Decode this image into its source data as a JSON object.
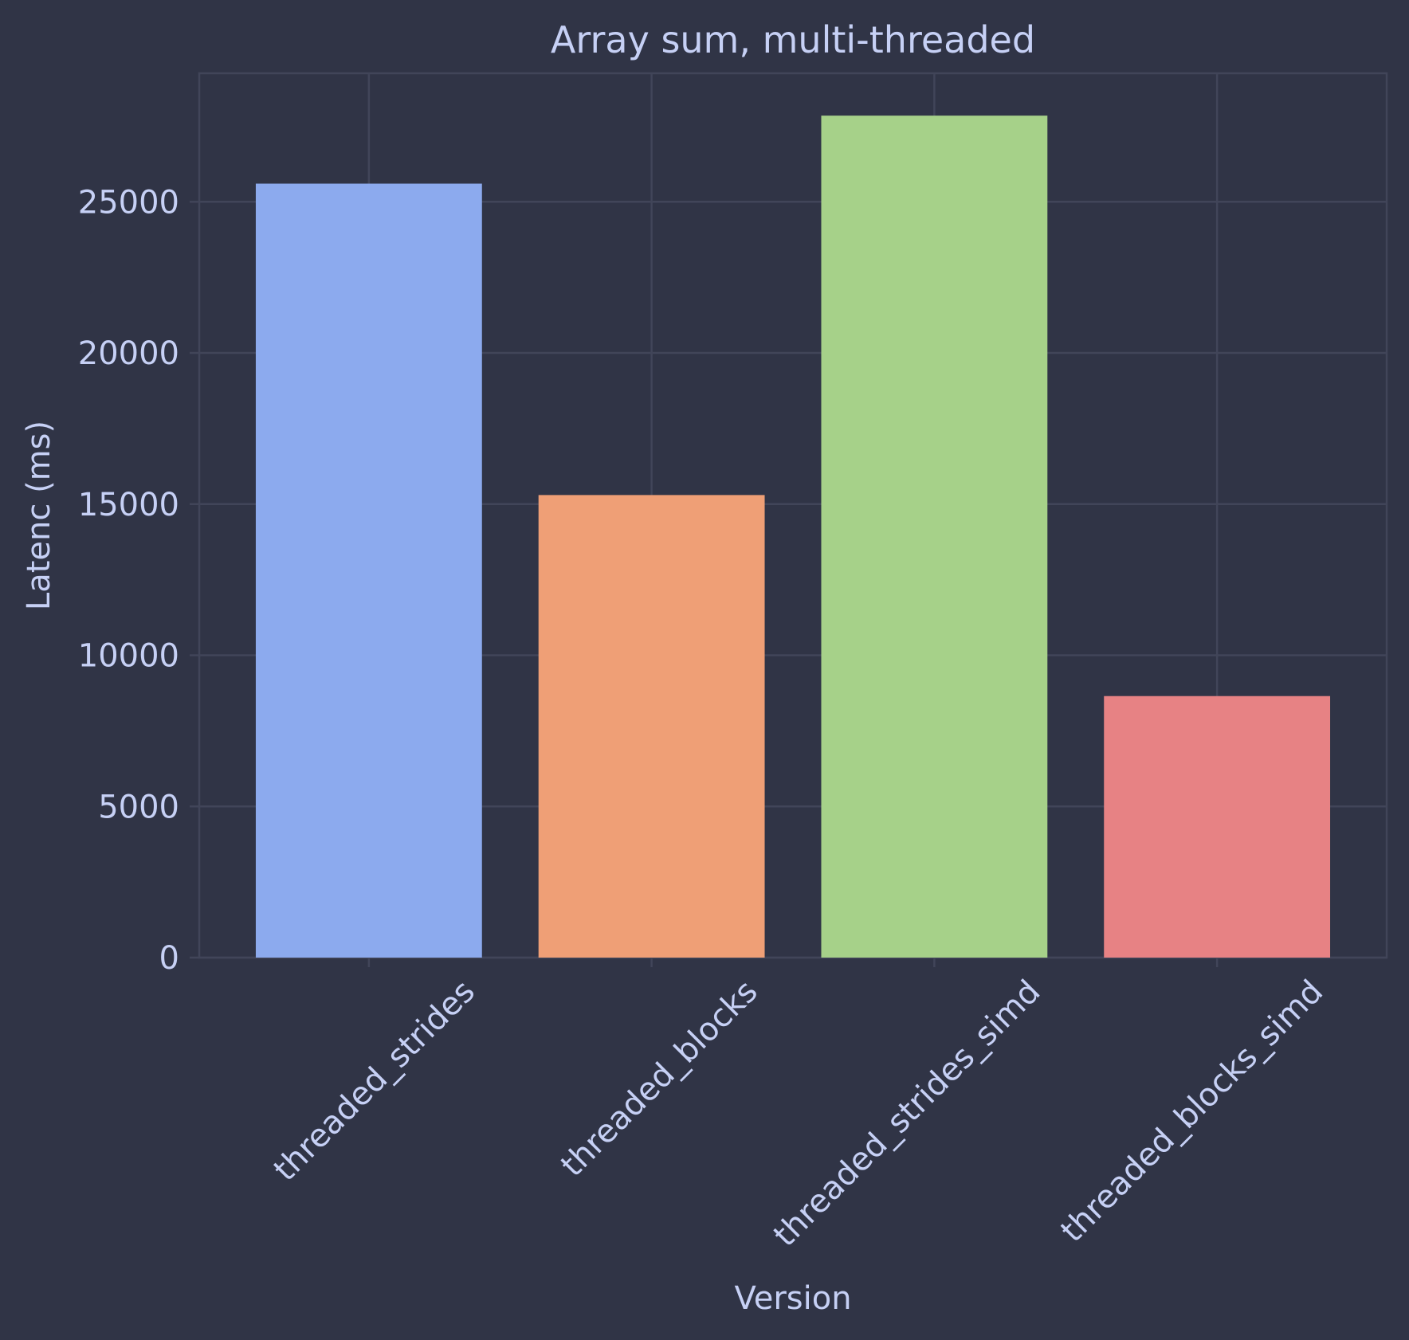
{
  "chart_data": {
    "type": "bar",
    "title": "Array sum, multi-threaded",
    "xlabel": "Version",
    "ylabel": "Latenc (ms)",
    "categories": [
      "threaded_strides",
      "threaded_blocks",
      "threaded_strides_simd",
      "threaded_blocks_simd"
    ],
    "values": [
      25600,
      15300,
      27850,
      8650
    ],
    "colors": [
      "#8caaee",
      "#ef9f76",
      "#a6d189",
      "#e78284"
    ],
    "ylim": [
      0,
      29250
    ],
    "yticks": [
      0,
      5000,
      10000,
      15000,
      20000,
      25000
    ],
    "grid": true,
    "legend": "none"
  }
}
